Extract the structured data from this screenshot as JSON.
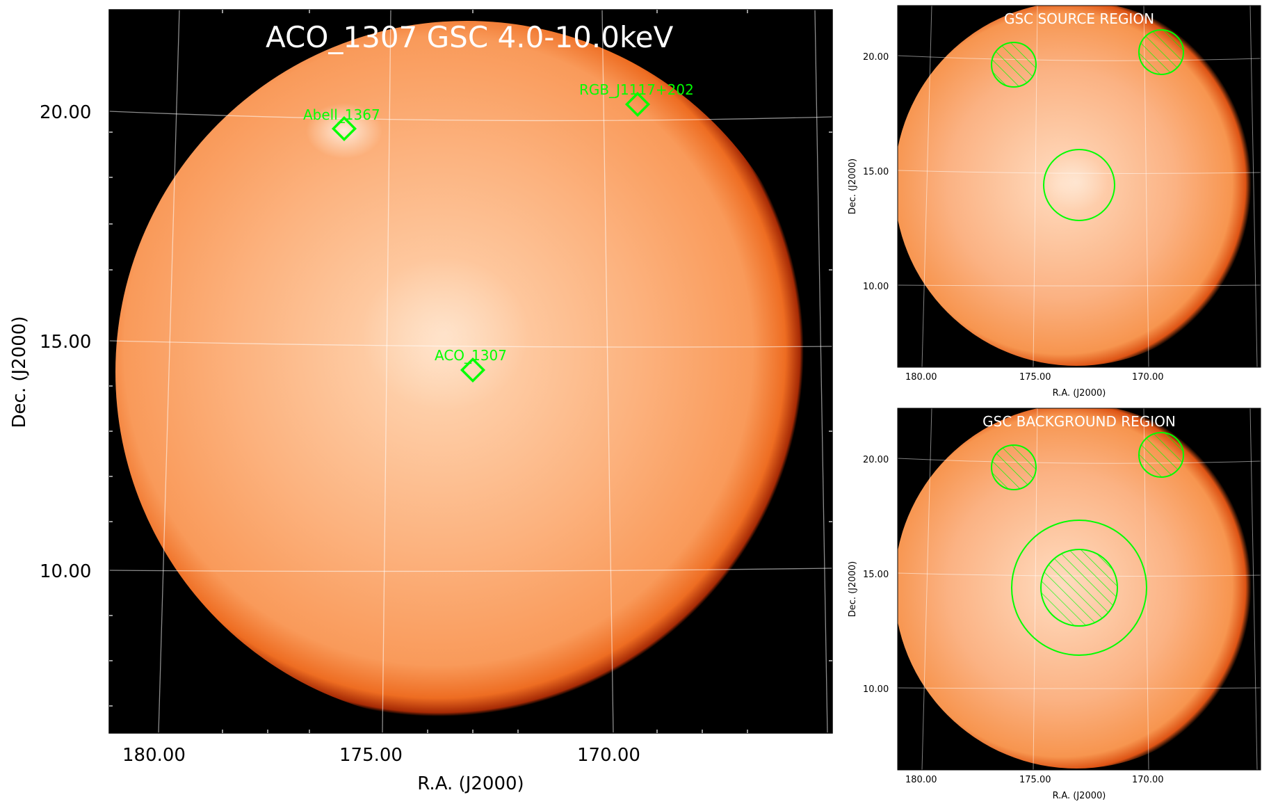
{
  "colors": {
    "background": "#000000",
    "disk_center": "#ffd9b3",
    "disk_mid": "#fba56b",
    "disk_edge": "#c8440a",
    "grid": "#ffffff",
    "region": "#00ff00",
    "label": "#00ff00",
    "title": "#ffffff"
  },
  "main": {
    "title": "ACO_1307 GSC 4.0-10.0keV",
    "xlabel": "R.A. (J2000)",
    "ylabel": "Dec. (J2000)",
    "xticks": [
      "180.00",
      "175.00",
      "170.00"
    ],
    "yticks": [
      "20.00",
      "15.00",
      "10.00"
    ],
    "sources": [
      {
        "name": "Abell_1367",
        "marker": "diamond"
      },
      {
        "name": "RGB_J1117+202",
        "marker": "diamond"
      },
      {
        "name": "ACO_1307",
        "marker": "diamond"
      }
    ]
  },
  "source_panel": {
    "title": "GSC SOURCE REGION",
    "xlabel": "R.A. (J2000)",
    "ylabel": "Dec. (J2000)",
    "xticks": [
      "180.00",
      "175.00",
      "170.00"
    ],
    "yticks": [
      "20.00",
      "15.00",
      "10.00"
    ]
  },
  "background_panel": {
    "title": "GSC BACKGROUND REGION",
    "xlabel": "R.A. (J2000)",
    "ylabel": "Dec. (J2000)",
    "xticks": [
      "180.00",
      "175.00",
      "170.00"
    ],
    "yticks": [
      "20.00",
      "15.00",
      "10.00"
    ]
  }
}
